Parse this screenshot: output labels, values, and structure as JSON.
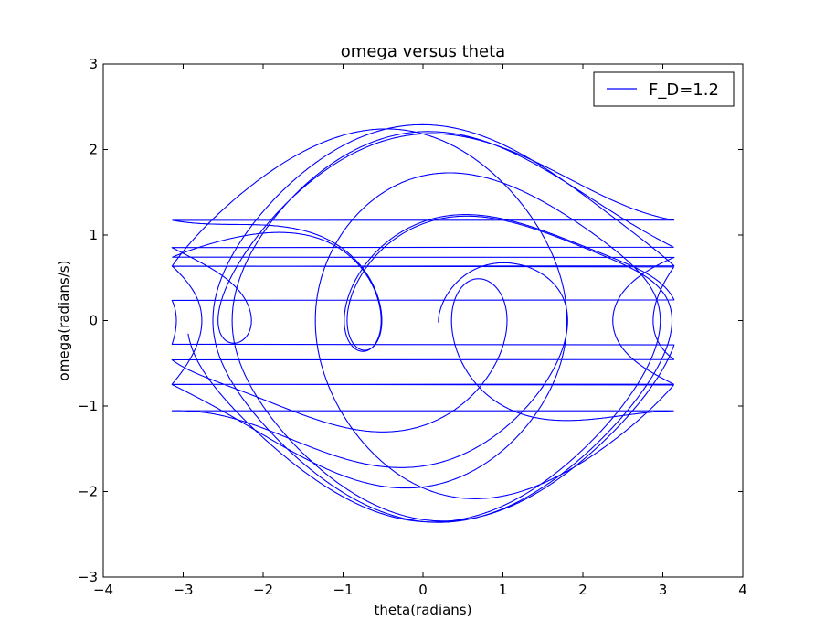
{
  "chart_data": {
    "type": "line",
    "title": "omega versus theta",
    "xlabel": "theta(radians)",
    "ylabel": "omega(radians/s)",
    "xlim": [
      -4,
      4
    ],
    "ylim": [
      -3,
      3
    ],
    "x_ticks": [
      -4,
      -3,
      -2,
      -1,
      0,
      1,
      2,
      3,
      4
    ],
    "y_ticks": [
      -3,
      -2,
      -1,
      0,
      1,
      2,
      3
    ],
    "x_tick_labels": [
      "−4",
      "−3",
      "−2",
      "−1",
      "0",
      "1",
      "2",
      "3",
      "4"
    ],
    "y_tick_labels": [
      "−3",
      "−2",
      "−1",
      "0",
      "1",
      "2",
      "3"
    ],
    "grid": false,
    "legend_position": "top-right",
    "series": [
      {
        "name": "F_D=1.2",
        "color": "#0000ff",
        "theta_range": [
          -3.14,
          3.14
        ],
        "omega_peak": 2.36,
        "omega_trough": -2.35,
        "start_point": [
          0.2,
          0.0
        ]
      }
    ]
  }
}
